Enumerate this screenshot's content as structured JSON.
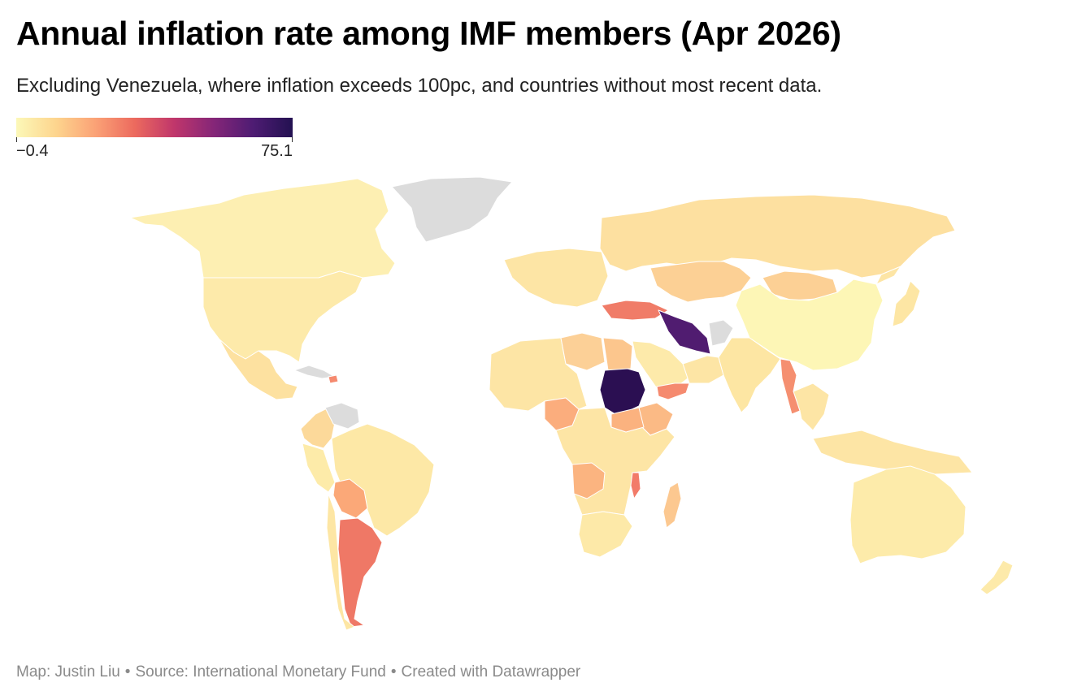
{
  "title": "Annual inflation rate among IMF members (Apr 2026)",
  "subtitle": "Excluding Venezuela, where inflation exceeds 100pc, and countries without most recent data.",
  "legend": {
    "min_label": "−0.4",
    "max_label": "75.1",
    "min": -0.4,
    "max": 75.1,
    "gradient": [
      "#fcf8b8",
      "#fdd58e",
      "#fba276",
      "#ec6a5e",
      "#c0366b",
      "#852678",
      "#4e1c73",
      "#231151"
    ]
  },
  "colors": {
    "no_data": "#dcdcdc",
    "border": "#ffffff",
    "base_land": "#fde5a5"
  },
  "footer": {
    "map_credit": "Map: Justin Liu",
    "source": "Source: International Monetary Fund",
    "tool": "Created with Datawrapper",
    "separator": "•"
  },
  "map_data": {
    "type": "choropleth",
    "regions": [
      {
        "name": "Canada",
        "color": "#fdefb2"
      },
      {
        "name": "United States",
        "color": "#fdeaaa"
      },
      {
        "name": "Mexico",
        "color": "#fde1a0"
      },
      {
        "name": "Greenland",
        "color": "#dcdcdc"
      },
      {
        "name": "Cuba",
        "color": "#dcdcdc"
      },
      {
        "name": "Haiti",
        "color": "#f58a6f"
      },
      {
        "name": "Colombia",
        "color": "#fcd99a"
      },
      {
        "name": "Venezuela",
        "color": "#dcdcdc"
      },
      {
        "name": "Brazil",
        "color": "#fde8a6"
      },
      {
        "name": "Bolivia",
        "color": "#fba878"
      },
      {
        "name": "Argentina",
        "color": "#ef7866"
      },
      {
        "name": "Chile",
        "color": "#fde6a4"
      },
      {
        "name": "Peru",
        "color": "#fdeba9"
      },
      {
        "name": "Russia",
        "color": "#fde0a0"
      },
      {
        "name": "Kazakhstan",
        "color": "#fcd095"
      },
      {
        "name": "Mongolia",
        "color": "#fcd095"
      },
      {
        "name": "China",
        "color": "#fdf6b6"
      },
      {
        "name": "India",
        "color": "#fde6a3"
      },
      {
        "name": "Turkey",
        "color": "#f07c68"
      },
      {
        "name": "Iran",
        "color": "#501c70"
      },
      {
        "name": "Afghanistan",
        "color": "#dcdcdc"
      },
      {
        "name": "Saudi Arabia",
        "color": "#fdeaaa"
      },
      {
        "name": "Yemen",
        "color": "#f58a6f"
      },
      {
        "name": "Myanmar",
        "color": "#f58f70"
      },
      {
        "name": "Egypt",
        "color": "#fcc68d"
      },
      {
        "name": "Libya",
        "color": "#fcd097"
      },
      {
        "name": "Sudan",
        "color": "#2b0f52"
      },
      {
        "name": "Ethiopia",
        "color": "#fbba85"
      },
      {
        "name": "South Sudan",
        "color": "#fbb27f"
      },
      {
        "name": "Nigeria",
        "color": "#fbad7d"
      },
      {
        "name": "Angola",
        "color": "#fbb480"
      },
      {
        "name": "Malawi",
        "color": "#f27b69"
      },
      {
        "name": "Madagascar",
        "color": "#fcc890"
      },
      {
        "name": "South Africa",
        "color": "#fde9a8"
      },
      {
        "name": "Australia",
        "color": "#fdebaa"
      },
      {
        "name": "New Zealand",
        "color": "#fdeaaa"
      },
      {
        "name": "Japan",
        "color": "#fde6a4"
      }
    ]
  }
}
